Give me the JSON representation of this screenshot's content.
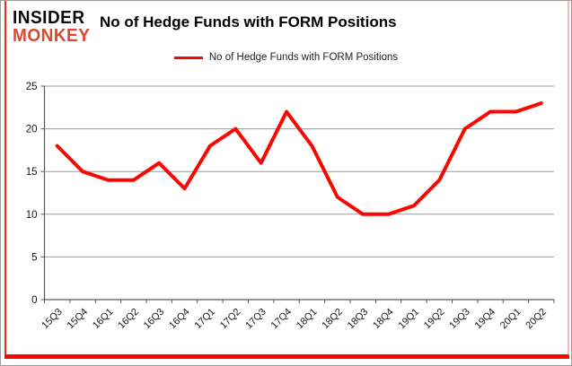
{
  "header": {
    "logo_line1": "INSIDER",
    "logo_line2": "MONKEY",
    "title": "No of Hedge Funds with FORM Positions"
  },
  "legend": {
    "label": "No of Hedge Funds with FORM Positions"
  },
  "colors": {
    "line": "#fb0600",
    "logo_black": "#0b0b0b",
    "logo_red": "#d9482f",
    "grid": "#9a9a9a",
    "axis": "#595959",
    "tick_text": "#161616",
    "accent_left": "#ef2b1e",
    "accent_right": "#f6bab2",
    "accent_bottom": "#fb0600",
    "outer_border": "#9b9b9b"
  },
  "chart_data": {
    "type": "line",
    "title": "No of Hedge Funds with FORM Positions",
    "categories": [
      "15Q3",
      "15Q4",
      "16Q1",
      "16Q2",
      "16Q3",
      "16Q4",
      "17Q1",
      "17Q2",
      "17Q3",
      "17Q4",
      "18Q1",
      "18Q2",
      "18Q3",
      "18Q4",
      "19Q1",
      "19Q2",
      "19Q3",
      "19Q4",
      "20Q1",
      "20Q2"
    ],
    "series": [
      {
        "name": "No of Hedge Funds with FORM Positions",
        "values": [
          18,
          15,
          14,
          14,
          16,
          13,
          18,
          20,
          16,
          22,
          18,
          12,
          10,
          10,
          11,
          14,
          20,
          22,
          22,
          23
        ]
      }
    ],
    "xlabel": "",
    "ylabel": "",
    "ylim": [
      0,
      25
    ],
    "yticks": [
      0,
      5,
      10,
      15,
      20,
      25
    ],
    "grid": true,
    "legend_position": "top-center",
    "line_width": 4
  }
}
